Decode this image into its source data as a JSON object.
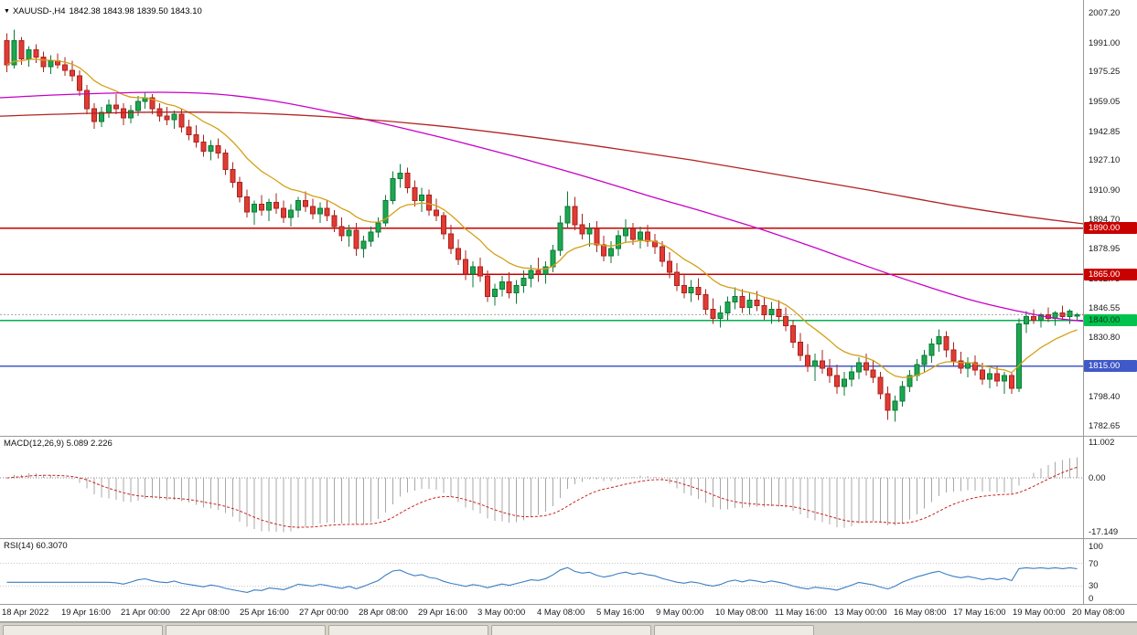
{
  "header": {
    "dropdown_icon": "▼",
    "title": "XAUUSD-,H4",
    "ohlc_text": "1842.38 1843.98 1839.50 1843.10"
  },
  "colors": {
    "up_fill": "#1da750",
    "up_stroke": "#0b7a36",
    "down_fill": "#e23b33",
    "down_stroke": "#a8231d",
    "axis_text": "#1a1a1a",
    "panel_border": "#9a9a9a",
    "current_price_line": "#a6a6a6"
  },
  "chart_data": {
    "type": "candlestick",
    "symbol": "XAUUSD-",
    "timeframe": "H4",
    "last_bar": {
      "open": 1842.38,
      "high": 1843.98,
      "low": 1839.5,
      "close": 1843.1
    },
    "ylim": [
      1782.65,
      2007.2
    ],
    "y_ticks": [
      2007.2,
      1991.0,
      1975.25,
      1959.05,
      1942.85,
      1927.1,
      1910.9,
      1894.7,
      1878.95,
      1862.75,
      1846.55,
      1830.8,
      1814.6,
      1798.4,
      1782.65
    ],
    "x_labels": [
      "18 Apr 2022",
      "19 Apr 16:00",
      "21 Apr 00:00",
      "22 Apr 08:00",
      "25 Apr 16:00",
      "27 Apr 00:00",
      "28 Apr 08:00",
      "29 Apr 16:00",
      "3 May 00:00",
      "4 May 08:00",
      "5 May 16:00",
      "9 May 00:00",
      "10 May 08:00",
      "11 May 16:00",
      "13 May 00:00",
      "16 May 08:00",
      "17 May 16:00",
      "19 May 00:00",
      "20 May 08:00"
    ],
    "candles": [
      [
        1992,
        1996,
        1975,
        1979
      ],
      [
        1979,
        1998,
        1977,
        1992
      ],
      [
        1992,
        1994,
        1979,
        1982
      ],
      [
        1982,
        1989,
        1978,
        1987
      ],
      [
        1987,
        1990,
        1980,
        1983
      ],
      [
        1983,
        1986,
        1975,
        1978
      ],
      [
        1978,
        1984,
        1974,
        1981
      ],
      [
        1981,
        1985,
        1977,
        1979
      ],
      [
        1979,
        1983,
        1973,
        1976
      ],
      [
        1976,
        1981,
        1970,
        1973
      ],
      [
        1973,
        1976,
        1962,
        1965
      ],
      [
        1965,
        1968,
        1952,
        1955
      ],
      [
        1955,
        1958,
        1944,
        1948
      ],
      [
        1948,
        1956,
        1945,
        1953
      ],
      [
        1953,
        1960,
        1950,
        1957
      ],
      [
        1957,
        1963,
        1952,
        1955
      ],
      [
        1955,
        1958,
        1946,
        1950
      ],
      [
        1950,
        1957,
        1947,
        1954
      ],
      [
        1954,
        1962,
        1951,
        1959
      ],
      [
        1959,
        1964,
        1955,
        1961
      ],
      [
        1961,
        1963,
        1952,
        1955
      ],
      [
        1955,
        1958,
        1948,
        1951
      ],
      [
        1951,
        1956,
        1946,
        1949
      ],
      [
        1949,
        1954,
        1944,
        1952
      ],
      [
        1952,
        1955,
        1942,
        1945
      ],
      [
        1945,
        1949,
        1938,
        1941
      ],
      [
        1941,
        1946,
        1934,
        1937
      ],
      [
        1937,
        1941,
        1929,
        1932
      ],
      [
        1932,
        1938,
        1927,
        1935
      ],
      [
        1935,
        1939,
        1928,
        1931
      ],
      [
        1931,
        1933,
        1919,
        1922
      ],
      [
        1922,
        1926,
        1912,
        1915
      ],
      [
        1915,
        1918,
        1904,
        1907
      ],
      [
        1907,
        1911,
        1896,
        1899
      ],
      [
        1899,
        1905,
        1892,
        1903
      ],
      [
        1903,
        1908,
        1897,
        1900
      ],
      [
        1900,
        1906,
        1894,
        1904
      ],
      [
        1904,
        1909,
        1898,
        1901
      ],
      [
        1901,
        1905,
        1893,
        1896
      ],
      [
        1896,
        1903,
        1891,
        1900
      ],
      [
        1900,
        1907,
        1896,
        1905
      ],
      [
        1905,
        1910,
        1899,
        1902
      ],
      [
        1902,
        1906,
        1895,
        1898
      ],
      [
        1898,
        1904,
        1893,
        1901
      ],
      [
        1901,
        1905,
        1894,
        1897
      ],
      [
        1897,
        1900,
        1888,
        1891
      ],
      [
        1891,
        1896,
        1883,
        1886
      ],
      [
        1886,
        1892,
        1880,
        1889
      ],
      [
        1889,
        1893,
        1875,
        1879
      ],
      [
        1879,
        1886,
        1874,
        1883
      ],
      [
        1883,
        1891,
        1880,
        1888
      ],
      [
        1888,
        1896,
        1885,
        1893
      ],
      [
        1893,
        1908,
        1891,
        1905
      ],
      [
        1905,
        1921,
        1903,
        1917
      ],
      [
        1917,
        1925,
        1912,
        1920
      ],
      [
        1920,
        1923,
        1909,
        1912
      ],
      [
        1912,
        1916,
        1902,
        1905
      ],
      [
        1905,
        1912,
        1899,
        1908
      ],
      [
        1908,
        1911,
        1897,
        1900
      ],
      [
        1900,
        1906,
        1894,
        1897
      ],
      [
        1897,
        1899,
        1884,
        1887
      ],
      [
        1887,
        1892,
        1876,
        1879
      ],
      [
        1879,
        1884,
        1870,
        1873
      ],
      [
        1873,
        1878,
        1862,
        1865
      ],
      [
        1865,
        1872,
        1858,
        1869
      ],
      [
        1869,
        1874,
        1861,
        1864
      ],
      [
        1864,
        1867,
        1850,
        1853
      ],
      [
        1853,
        1860,
        1848,
        1857
      ],
      [
        1857,
        1864,
        1853,
        1861
      ],
      [
        1861,
        1866,
        1852,
        1855
      ],
      [
        1855,
        1862,
        1849,
        1859
      ],
      [
        1859,
        1867,
        1855,
        1863
      ],
      [
        1863,
        1870,
        1858,
        1867
      ],
      [
        1867,
        1874,
        1861,
        1865
      ],
      [
        1865,
        1872,
        1860,
        1869
      ],
      [
        1869,
        1881,
        1866,
        1878
      ],
      [
        1878,
        1897,
        1875,
        1893
      ],
      [
        1893,
        1910,
        1890,
        1902
      ],
      [
        1902,
        1907,
        1889,
        1892
      ],
      [
        1892,
        1898,
        1884,
        1887
      ],
      [
        1887,
        1893,
        1880,
        1890
      ],
      [
        1890,
        1894,
        1877,
        1881
      ],
      [
        1881,
        1886,
        1872,
        1875
      ],
      [
        1875,
        1883,
        1871,
        1879
      ],
      [
        1879,
        1889,
        1875,
        1886
      ],
      [
        1886,
        1895,
        1882,
        1890
      ],
      [
        1890,
        1893,
        1881,
        1884
      ],
      [
        1884,
        1891,
        1879,
        1888
      ],
      [
        1888,
        1892,
        1880,
        1883
      ],
      [
        1883,
        1887,
        1876,
        1880
      ],
      [
        1880,
        1883,
        1869,
        1872
      ],
      [
        1872,
        1877,
        1863,
        1866
      ],
      [
        1866,
        1871,
        1856,
        1859
      ],
      [
        1859,
        1865,
        1852,
        1855
      ],
      [
        1855,
        1862,
        1850,
        1858
      ],
      [
        1858,
        1863,
        1851,
        1854
      ],
      [
        1854,
        1857,
        1843,
        1846
      ],
      [
        1846,
        1852,
        1838,
        1841
      ],
      [
        1841,
        1848,
        1836,
        1844
      ],
      [
        1844,
        1853,
        1840,
        1850
      ],
      [
        1850,
        1858,
        1846,
        1853
      ],
      [
        1853,
        1857,
        1844,
        1847
      ],
      [
        1847,
        1855,
        1843,
        1851
      ],
      [
        1851,
        1856,
        1845,
        1848
      ],
      [
        1848,
        1853,
        1840,
        1843
      ],
      [
        1843,
        1850,
        1838,
        1846
      ],
      [
        1846,
        1851,
        1839,
        1842
      ],
      [
        1842,
        1847,
        1834,
        1837
      ],
      [
        1837,
        1840,
        1825,
        1828
      ],
      [
        1828,
        1833,
        1818,
        1821
      ],
      [
        1821,
        1827,
        1812,
        1815
      ],
      [
        1815,
        1822,
        1807,
        1818
      ],
      [
        1818,
        1824,
        1811,
        1814
      ],
      [
        1814,
        1819,
        1806,
        1810
      ],
      [
        1810,
        1816,
        1800,
        1804
      ],
      [
        1804,
        1812,
        1799,
        1808
      ],
      [
        1808,
        1815,
        1804,
        1812
      ],
      [
        1812,
        1820,
        1808,
        1817
      ],
      [
        1817,
        1822,
        1810,
        1813
      ],
      [
        1813,
        1818,
        1806,
        1809
      ],
      [
        1809,
        1812,
        1797,
        1800
      ],
      [
        1800,
        1804,
        1786,
        1791
      ],
      [
        1791,
        1799,
        1785,
        1796
      ],
      [
        1796,
        1807,
        1793,
        1804
      ],
      [
        1804,
        1813,
        1801,
        1810
      ],
      [
        1810,
        1819,
        1807,
        1816
      ],
      [
        1816,
        1824,
        1812,
        1821
      ],
      [
        1821,
        1830,
        1817,
        1827
      ],
      [
        1827,
        1835,
        1823,
        1831
      ],
      [
        1831,
        1834,
        1820,
        1824
      ],
      [
        1824,
        1828,
        1815,
        1818
      ],
      [
        1818,
        1823,
        1811,
        1814
      ],
      [
        1814,
        1820,
        1809,
        1817
      ],
      [
        1817,
        1821,
        1810,
        1813
      ],
      [
        1813,
        1817,
        1805,
        1808
      ],
      [
        1808,
        1814,
        1803,
        1811
      ],
      [
        1811,
        1815,
        1804,
        1807
      ],
      [
        1807,
        1812,
        1800,
        1810
      ],
      [
        1810,
        1812,
        1800,
        1803
      ],
      [
        1803,
        1841,
        1801,
        1838
      ],
      [
        1838,
        1845,
        1833,
        1842
      ],
      [
        1842,
        1846,
        1838,
        1840
      ],
      [
        1840,
        1844,
        1836,
        1843
      ],
      [
        1843,
        1847,
        1839,
        1841
      ],
      [
        1841,
        1845,
        1837,
        1844
      ],
      [
        1844,
        1848,
        1840,
        1842
      ],
      [
        1842,
        1846,
        1838,
        1845
      ],
      [
        1842.38,
        1843.98,
        1839.5,
        1843.1
      ]
    ],
    "moving_averages": [
      {
        "name": "ma-fast",
        "color": "#d4a017",
        "method": "ema",
        "period": 13
      },
      {
        "name": "ma-medium",
        "color": "#c800c8",
        "method": "anchors",
        "points": [
          [
            0.0,
            1961
          ],
          [
            0.05,
            1962.5
          ],
          [
            0.1,
            1963.5
          ],
          [
            0.15,
            1964
          ],
          [
            0.2,
            1963
          ],
          [
            0.25,
            1959.5
          ],
          [
            0.3,
            1954
          ],
          [
            0.35,
            1947.5
          ],
          [
            0.4,
            1940.5
          ],
          [
            0.45,
            1933
          ],
          [
            0.5,
            1925
          ],
          [
            0.55,
            1916.5
          ],
          [
            0.6,
            1907.5
          ],
          [
            0.65,
            1899
          ],
          [
            0.7,
            1890
          ],
          [
            0.75,
            1880
          ],
          [
            0.8,
            1869.5
          ],
          [
            0.85,
            1859.5
          ],
          [
            0.9,
            1850.5
          ],
          [
            0.94,
            1845
          ],
          [
            0.97,
            1841.5
          ],
          [
            1.0,
            1839.5
          ]
        ]
      },
      {
        "name": "ma-slow",
        "color": "#b22222",
        "method": "anchors",
        "points": [
          [
            0.0,
            1951
          ],
          [
            0.08,
            1952.5
          ],
          [
            0.16,
            1953.2
          ],
          [
            0.24,
            1952.5
          ],
          [
            0.32,
            1950
          ],
          [
            0.4,
            1946
          ],
          [
            0.48,
            1940.5
          ],
          [
            0.56,
            1934
          ],
          [
            0.64,
            1927
          ],
          [
            0.72,
            1919
          ],
          [
            0.8,
            1911
          ],
          [
            0.88,
            1902.5
          ],
          [
            0.94,
            1897
          ],
          [
            1.0,
            1892.5
          ]
        ]
      }
    ],
    "horizontal_levels": [
      {
        "value": 1890.0,
        "color": "#c80000",
        "label_bg": "#c80000",
        "label_fg": "#ffffff"
      },
      {
        "value": 1865.0,
        "color": "#c80000",
        "label_bg": "#c80000",
        "label_fg": "#ffffff"
      },
      {
        "value": 1840.0,
        "color": "#00b050",
        "label_bg": "#00c24e",
        "label_fg": "#003a14"
      },
      {
        "value": 1815.0,
        "color": "#4059c8",
        "label_bg": "#4059c8",
        "label_fg": "#ffffff"
      }
    ],
    "current_price": 1843.1,
    "indicators": [
      {
        "name": "MACD",
        "label": "MACD(12,26,9)",
        "values_text": "5.089 2.226",
        "fast": 12,
        "slow": 26,
        "signal": 9,
        "range": [
          -17.149,
          11.002
        ],
        "axis_labels": [
          "11.002",
          "0.00",
          "-17.149"
        ],
        "histogram_color": "#a8a8a8",
        "signal_color": "#cc2222"
      },
      {
        "name": "RSI",
        "label": "RSI(14)",
        "value_text": "60.3070",
        "period": 14,
        "axis_labels": [
          "100",
          "70",
          "30",
          "0"
        ],
        "guide_levels": [
          70,
          30
        ],
        "line_color": "#3b7ec2"
      }
    ]
  },
  "taskbar": {
    "button_count": 5
  }
}
